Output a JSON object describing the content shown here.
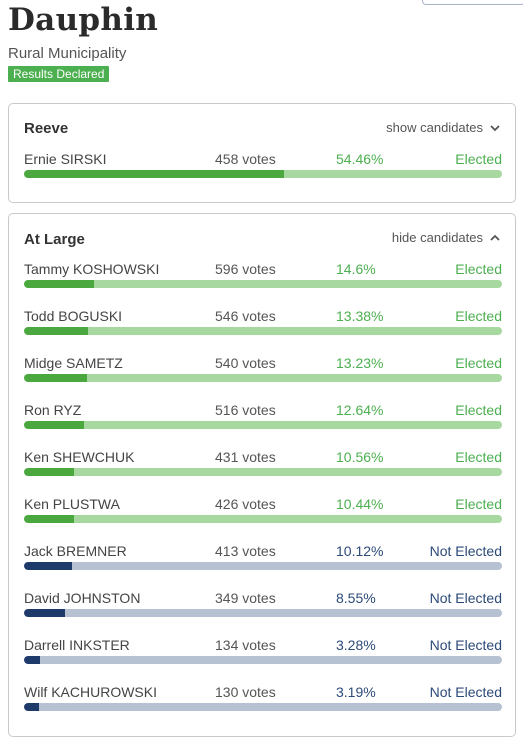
{
  "header": {
    "title": "Dauphin",
    "subtitle": "Rural Municipality",
    "badge": "Results Declared"
  },
  "colors": {
    "elected": "#4caf50",
    "not_elected": "#2c4a78",
    "badge_bg": "#4caf50"
  },
  "races": [
    {
      "title": "Reeve",
      "toggle_label": "show candidates",
      "toggle_icon": "chevron-down-icon",
      "candidates": [
        {
          "name": "Ernie SIRSKI",
          "votes": "458 votes",
          "pct": "54.46%",
          "share": 54.46,
          "status": "Elected",
          "elected": true
        }
      ]
    },
    {
      "title": "At Large",
      "toggle_label": "hide candidates",
      "toggle_icon": "chevron-up-icon",
      "candidates": [
        {
          "name": "Tammy KOSHOWSKI",
          "votes": "596 votes",
          "pct": "14.6%",
          "share": 14.6,
          "status": "Elected",
          "elected": true
        },
        {
          "name": "Todd BOGUSKI",
          "votes": "546 votes",
          "pct": "13.38%",
          "share": 13.38,
          "status": "Elected",
          "elected": true
        },
        {
          "name": "Midge SAMETZ",
          "votes": "540 votes",
          "pct": "13.23%",
          "share": 13.23,
          "status": "Elected",
          "elected": true
        },
        {
          "name": "Ron RYZ",
          "votes": "516 votes",
          "pct": "12.64%",
          "share": 12.64,
          "status": "Elected",
          "elected": true
        },
        {
          "name": "Ken SHEWCHUK",
          "votes": "431 votes",
          "pct": "10.56%",
          "share": 10.56,
          "status": "Elected",
          "elected": true
        },
        {
          "name": "Ken PLUSTWA",
          "votes": "426 votes",
          "pct": "10.44%",
          "share": 10.44,
          "status": "Elected",
          "elected": true
        },
        {
          "name": "Jack BREMNER",
          "votes": "413 votes",
          "pct": "10.12%",
          "share": 10.12,
          "status": "Not Elected",
          "elected": false
        },
        {
          "name": "David JOHNSTON",
          "votes": "349 votes",
          "pct": "8.55%",
          "share": 8.55,
          "status": "Not Elected",
          "elected": false
        },
        {
          "name": "Darrell INKSTER",
          "votes": "134 votes",
          "pct": "3.28%",
          "share": 3.28,
          "status": "Not Elected",
          "elected": false
        },
        {
          "name": "Wilf KACHUROWSKI",
          "votes": "130 votes",
          "pct": "3.19%",
          "share": 3.19,
          "status": "Not Elected",
          "elected": false
        }
      ]
    }
  ]
}
